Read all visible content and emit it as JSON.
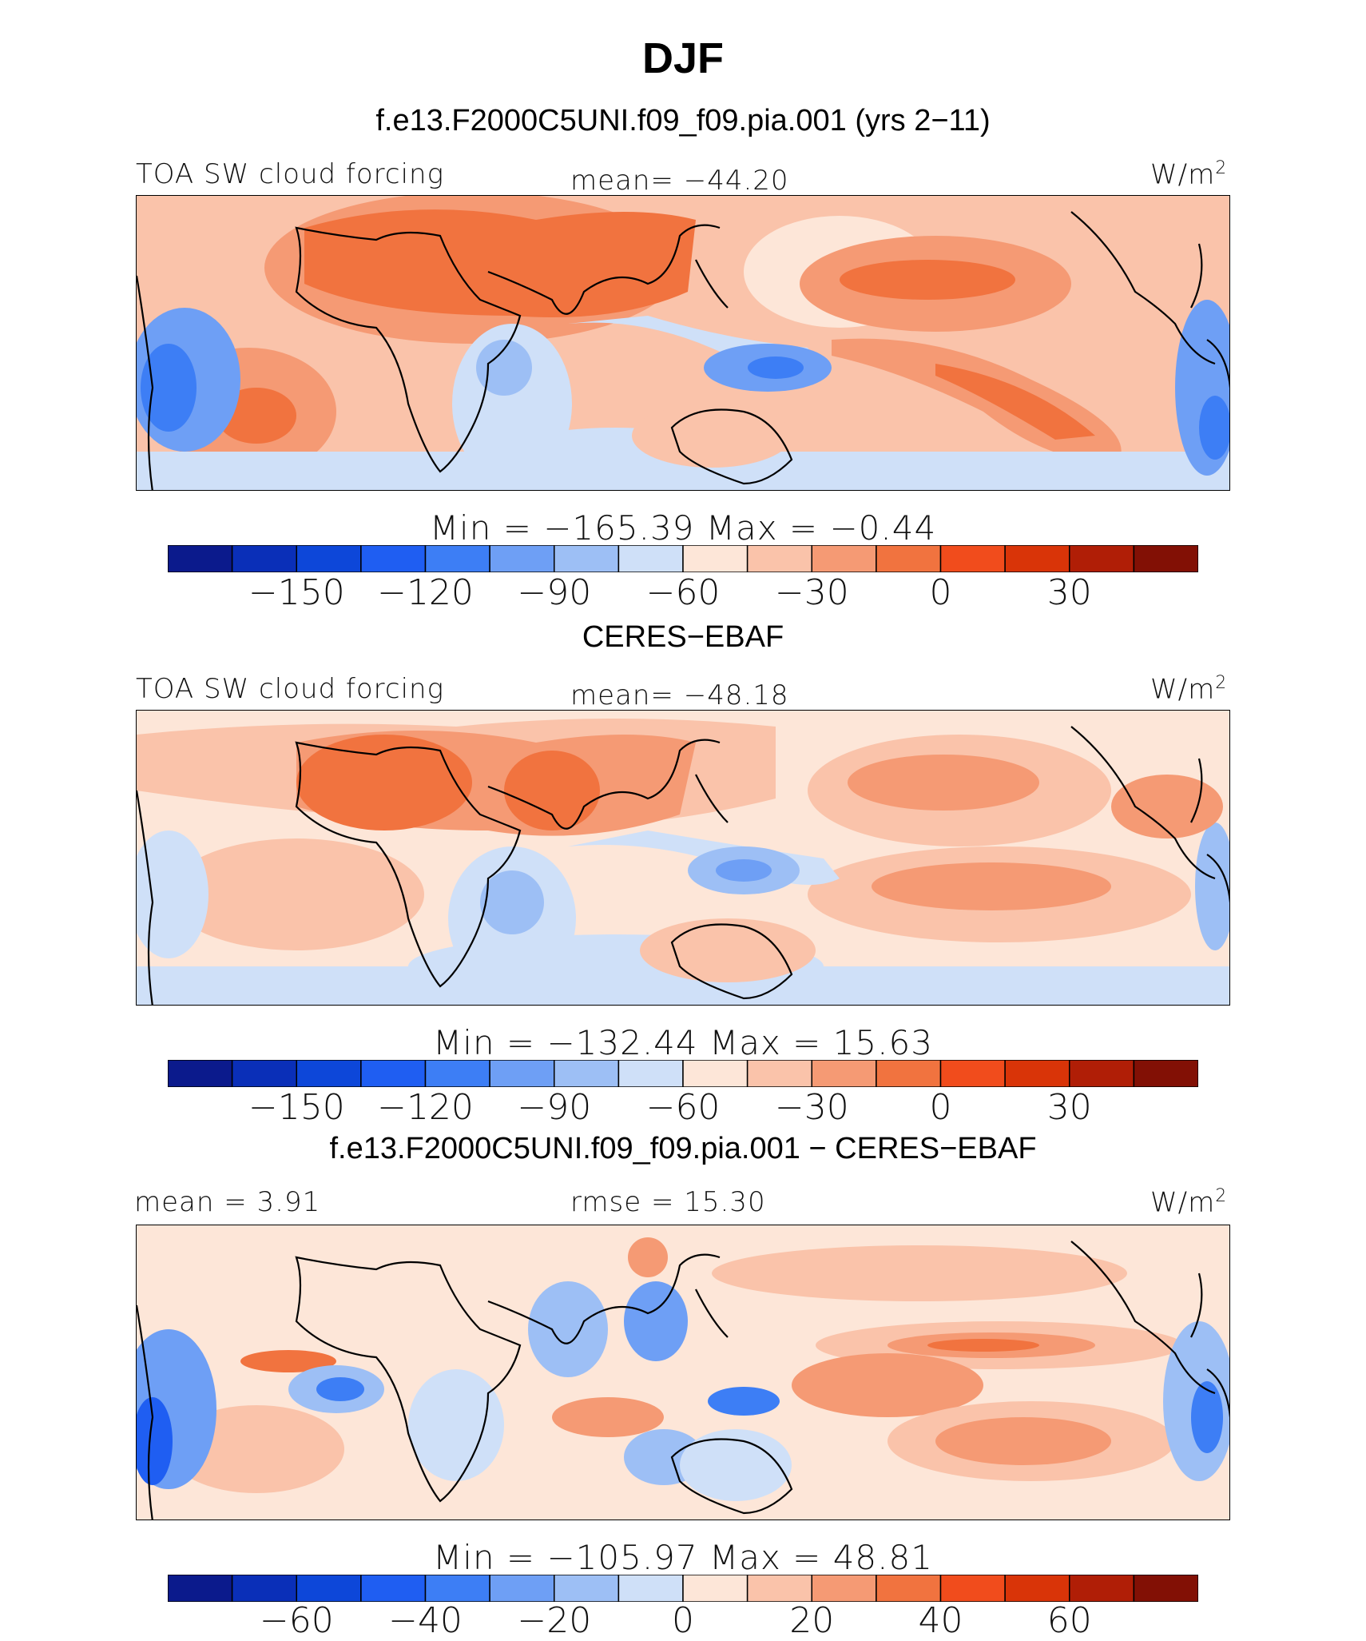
{
  "title": "DJF",
  "palette": {
    "colors": [
      "#0b1a8c",
      "#0a2fb8",
      "#0d47d9",
      "#1f5ef2",
      "#3d7ef5",
      "#6e9ff5",
      "#9dbff5",
      "#cfe0f8",
      "#fde6d8",
      "#fac3aa",
      "#f59a74",
      "#f1733f",
      "#f14c1c",
      "#d93408",
      "#b01e06",
      "#821005"
    ],
    "coastline": "#000000"
  },
  "chart_data": [
    {
      "type": "heatmap",
      "title": "f.e13.F2000C5UNI.f09_f09.pia.001 (yrs 2-11)",
      "variable": "TOA SW cloud forcing",
      "units": "W/m",
      "units_exp": "2",
      "mean": "mean= -44.20",
      "min": -165.39,
      "max": -0.44,
      "stat_text": "Min = -165.39 Max = -0.44",
      "levels": [
        -165,
        -150,
        -135,
        -120,
        -105,
        -90,
        -75,
        -60,
        -45,
        -30,
        -15,
        0,
        15,
        30,
        45
      ],
      "colorbar_ticks": [
        {
          "value": -150,
          "label": "-150"
        },
        {
          "value": -120,
          "label": "-120"
        },
        {
          "value": -90,
          "label": "-90"
        },
        {
          "value": -60,
          "label": "-60"
        },
        {
          "value": -30,
          "label": "-30"
        },
        {
          "value": 0,
          "label": "0"
        },
        {
          "value": 30,
          "label": "30"
        }
      ]
    },
    {
      "type": "heatmap",
      "title": "CERES-EBAF",
      "variable": "TOA SW cloud forcing",
      "units": "W/m",
      "units_exp": "2",
      "mean": "mean= -48.18",
      "min": -132.44,
      "max": 15.63,
      "stat_text": "Min = -132.44 Max = 15.63",
      "levels": [
        -165,
        -150,
        -135,
        -120,
        -105,
        -90,
        -75,
        -60,
        -45,
        -30,
        -15,
        0,
        15,
        30,
        45
      ],
      "colorbar_ticks": [
        {
          "value": -150,
          "label": "-150"
        },
        {
          "value": -120,
          "label": "-120"
        },
        {
          "value": -90,
          "label": "-90"
        },
        {
          "value": -60,
          "label": "-60"
        },
        {
          "value": -30,
          "label": "-30"
        },
        {
          "value": 0,
          "label": "0"
        },
        {
          "value": 30,
          "label": "30"
        }
      ]
    },
    {
      "type": "heatmap",
      "title": "f.e13.F2000C5UNI.f09_f09.pia.001 - CERES-EBAF",
      "left_label": "mean = 3.91",
      "center_label": "rmse = 15.30",
      "units": "W/m",
      "units_exp": "2",
      "min": -105.97,
      "max": 48.81,
      "stat_text": "Min = -105.97 Max = 48.81",
      "levels": [
        -70,
        -60,
        -50,
        -40,
        -30,
        -20,
        -10,
        0,
        10,
        20,
        30,
        40,
        50,
        60,
        70
      ],
      "colorbar_ticks": [
        {
          "value": -60,
          "label": "-60"
        },
        {
          "value": -40,
          "label": "-40"
        },
        {
          "value": -20,
          "label": "-20"
        },
        {
          "value": 0,
          "label": "0"
        },
        {
          "value": 20,
          "label": "20"
        },
        {
          "value": 40,
          "label": "40"
        },
        {
          "value": 60,
          "label": "60"
        }
      ]
    }
  ]
}
